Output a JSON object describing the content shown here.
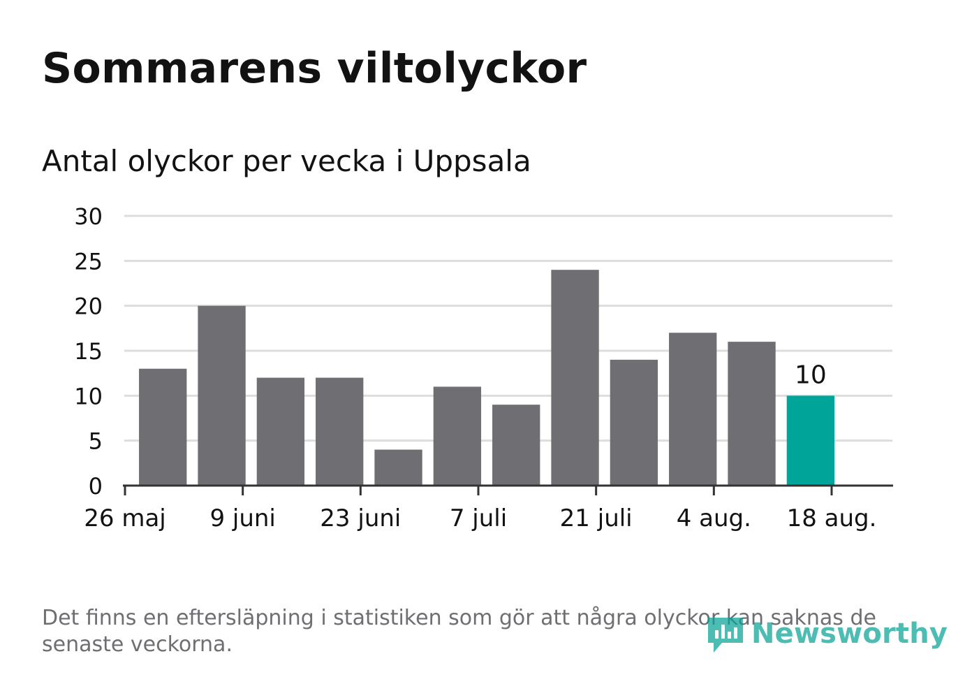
{
  "title": "Sommarens viltolyckor",
  "subtitle": "Antal olyckor per vecka i Uppsala",
  "footnote": "Det finns en eftersläpning i statistiken som gör att några olyckor kan saknas de senaste veckorna.",
  "logo": {
    "text": "Newsworthy",
    "icon": "newsworthy-logo-icon"
  },
  "colors": {
    "bar": "#6f6e73",
    "highlight": "#00a499",
    "grid": "#dddddd",
    "axis": "#333333",
    "text": "#121212"
  },
  "chart_data": {
    "type": "bar",
    "title": "Sommarens viltolyckor",
    "subtitle": "Antal olyckor per vecka i Uppsala",
    "xlabel": "",
    "ylabel": "",
    "x_ticks": [
      "26 maj",
      "9 juni",
      "23 juni",
      "7 juli",
      "21 juli",
      "4 aug.",
      "18 aug."
    ],
    "x_tick_dates": [
      "2019-05-26",
      "2019-06-09",
      "2019-06-23",
      "2019-07-07",
      "2019-07-21",
      "2019-08-04",
      "2019-08-18"
    ],
    "week_start_dates": [
      "2019-05-27",
      "2019-06-03",
      "2019-06-10",
      "2019-06-17",
      "2019-06-24",
      "2019-07-01",
      "2019-07-08",
      "2019-07-15",
      "2019-07-22",
      "2019-07-29",
      "2019-08-05",
      "2019-08-12"
    ],
    "values": [
      13,
      20,
      12,
      12,
      4,
      11,
      9,
      24,
      14,
      17,
      16,
      10
    ],
    "highlight_index": 11,
    "highlight_label": "10",
    "ylim": [
      0,
      30
    ],
    "y_ticks": [
      0,
      5,
      10,
      15,
      20,
      25,
      30
    ],
    "grid": true,
    "legend": "none"
  }
}
